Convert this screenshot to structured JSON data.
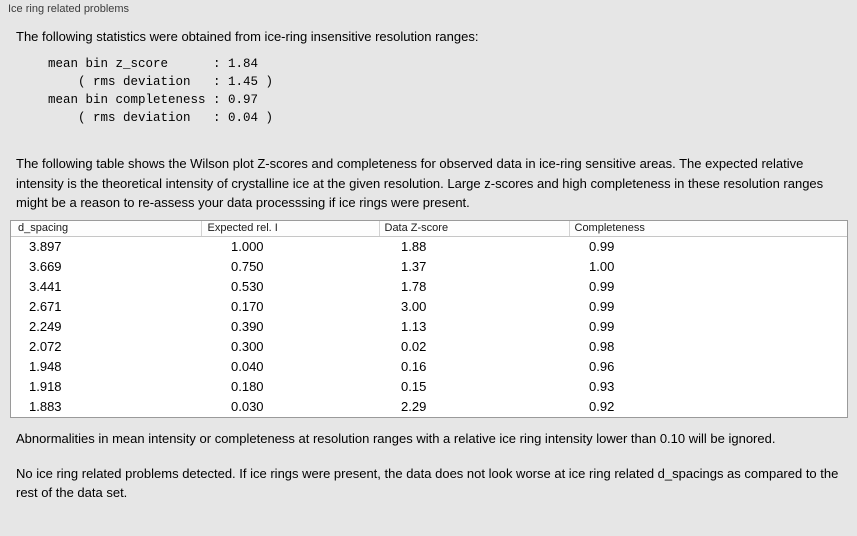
{
  "colors": {
    "panel_bg": "#e6e6e6",
    "table_bg": "#ffffff"
  },
  "panel": {
    "title": "Ice ring related problems"
  },
  "intro": "The following statistics were obtained from ice-ring insensitive resolution ranges:",
  "stats_block": "mean bin z_score      : 1.84\n    ( rms deviation   : 1.45 )\nmean bin completeness : 0.97\n    ( rms deviation   : 0.04 )",
  "table_description": "The following table shows the Wilson plot Z-scores and completeness for observed data in ice-ring sensitive areas. The expected relative intensity is the theoretical intensity of crystalline ice at the given resolution. Large z-scores and high completeness in these resolution ranges might be a reason to re-assess your data processsing if ice rings were present.",
  "table": {
    "headers": [
      "d_spacing",
      "Expected rel. I",
      "Data Z-score",
      "Completeness"
    ],
    "rows": [
      [
        "3.897",
        "1.000",
        "1.88",
        "0.99"
      ],
      [
        "3.669",
        "0.750",
        "1.37",
        "1.00"
      ],
      [
        "3.441",
        "0.530",
        "1.78",
        "0.99"
      ],
      [
        "2.671",
        "0.170",
        "3.00",
        "0.99"
      ],
      [
        "2.249",
        "0.390",
        "1.13",
        "0.99"
      ],
      [
        "2.072",
        "0.300",
        "0.02",
        "0.98"
      ],
      [
        "1.948",
        "0.040",
        "0.16",
        "0.96"
      ],
      [
        "1.918",
        "0.180",
        "0.15",
        "0.93"
      ],
      [
        "1.883",
        "0.030",
        "2.29",
        "0.92"
      ]
    ]
  },
  "note_abnormalities": "Abnormalities in mean intensity or completeness at resolution ranges with a relative ice ring intensity lower than 0.10 will be ignored.",
  "conclusion": "No ice ring related problems detected. If ice rings were present, the data does not look worse at ice ring related d_spacings as compared to the rest of the data set."
}
